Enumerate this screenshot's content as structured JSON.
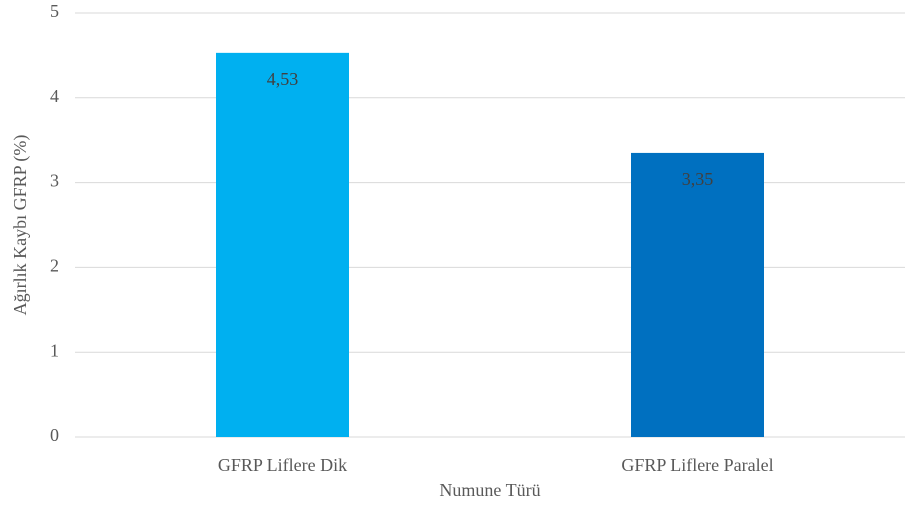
{
  "chart_data": {
    "type": "bar",
    "xlabel": "Numune Türü",
    "ylabel": "Ağırlık Kaybı GFRP (%)",
    "categories": [
      "GFRP Liflere Dik",
      "GFRP Liflere Paralel"
    ],
    "values": [
      4.53,
      3.35
    ],
    "value_labels": [
      "4,53",
      "3,35"
    ],
    "colors": [
      "#00b0f0",
      "#0070c0"
    ],
    "ylim": [
      0,
      5
    ],
    "yticks": [
      0,
      1,
      2,
      3,
      4,
      5
    ],
    "grid": true
  }
}
